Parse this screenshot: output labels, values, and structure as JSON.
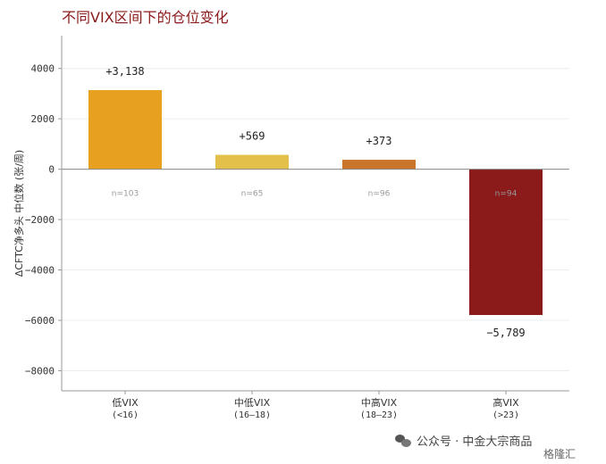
{
  "title": "不同VIX区间下的仓位变化",
  "chart_data": {
    "type": "bar",
    "title": "不同VIX区间下的仓位变化",
    "xlabel": "",
    "ylabel": "ΔCFTC净多头 中位数 (张/周)",
    "ylim": [
      -8800,
      5300
    ],
    "yticks": [
      4000,
      2000,
      0,
      -2000,
      -4000,
      -6000,
      -8000
    ],
    "ytick_labels": [
      "4000",
      "2000",
      "0",
      "−2000",
      "−4000",
      "−6000",
      "−8000"
    ],
    "categories": [
      {
        "line1": "低VIX",
        "line2": "(<16)"
      },
      {
        "line1": "中低VIX",
        "line2": "(16–18)"
      },
      {
        "line1": "中高VIX",
        "line2": "(18–23)"
      },
      {
        "line1": "高VIX",
        "line2": "(>23)"
      }
    ],
    "values": [
      3138,
      569,
      373,
      -5789
    ],
    "value_labels": [
      "+3,138",
      "+569",
      "+373",
      "−5,789"
    ],
    "n_labels": [
      "n=103",
      "n=65",
      "n=96",
      "n=94"
    ],
    "colors": [
      "#E8A020",
      "#E3C04A",
      "#C8742A",
      "#8B1A1A"
    ],
    "grid": "horizontal"
  },
  "watermark": {
    "text": "公众号 · 中金大宗商品"
  },
  "brand": "格隆汇"
}
